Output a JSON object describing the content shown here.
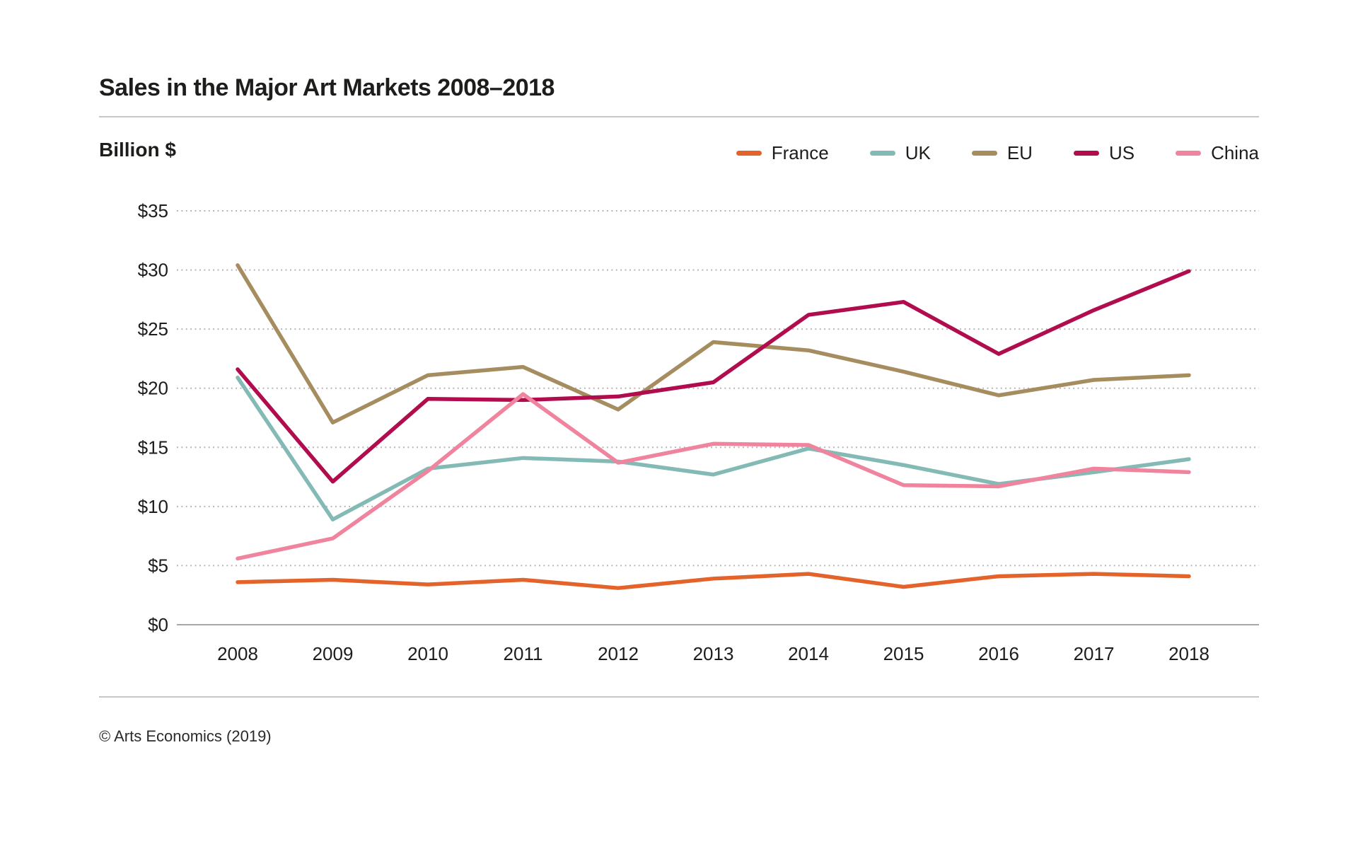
{
  "page": {
    "footer": "© Arts Economics (2019)"
  },
  "chart_data": {
    "type": "line",
    "title": "Sales in the Major Art Markets 2008–2018",
    "unit_label": "Billion $",
    "x": [
      "2008",
      "2009",
      "2010",
      "2011",
      "2012",
      "2013",
      "2014",
      "2015",
      "2016",
      "2017",
      "2018"
    ],
    "series": [
      {
        "name": "France",
        "color": "#e4632b",
        "values": [
          3.6,
          3.8,
          3.4,
          3.8,
          3.1,
          3.9,
          4.3,
          3.2,
          4.1,
          4.3,
          4.1
        ]
      },
      {
        "name": "UK",
        "color": "#84bab5",
        "values": [
          20.9,
          8.9,
          13.2,
          14.1,
          13.8,
          12.7,
          14.9,
          13.5,
          11.9,
          12.9,
          14.0
        ]
      },
      {
        "name": "EU",
        "color": "#a58d5f",
        "values": [
          30.4,
          17.1,
          21.1,
          21.8,
          18.2,
          23.9,
          23.2,
          21.4,
          19.4,
          20.7,
          21.1
        ]
      },
      {
        "name": "US",
        "color": "#b10c4d",
        "values": [
          21.6,
          12.1,
          19.1,
          19.0,
          19.3,
          20.5,
          26.2,
          27.3,
          22.9,
          26.6,
          29.9
        ]
      },
      {
        "name": "China",
        "color": "#f0839d",
        "values": [
          5.6,
          7.3,
          13.0,
          19.5,
          13.7,
          15.3,
          15.2,
          11.8,
          11.7,
          13.2,
          12.9
        ]
      }
    ],
    "ylim": [
      0,
      35
    ],
    "y_tick_step": 5,
    "y_tick_labels": [
      "$0",
      "$5",
      "$10",
      "$15",
      "$20",
      "$25",
      "$30",
      "$35"
    ],
    "grid": "dotted horizontal gridlines, solid zero axis",
    "legend_position": "top-right"
  }
}
